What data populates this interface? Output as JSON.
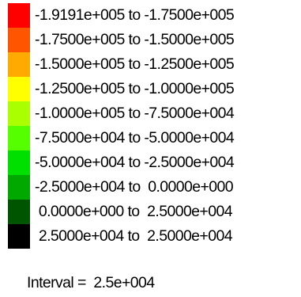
{
  "legend": {
    "items": [
      {
        "color": "#ff0000",
        "label": "-1.9191e+005 to -1.7500e+005"
      },
      {
        "color": "#ff5500",
        "label": "-1.7500e+005 to -1.5000e+005"
      },
      {
        "color": "#ffaa00",
        "label": "-1.5000e+005 to -1.2500e+005"
      },
      {
        "color": "#ffff00",
        "label": "-1.2500e+005 to -1.0000e+005"
      },
      {
        "color": "#aaff00",
        "label": "-1.0000e+005 to -7.5000e+004"
      },
      {
        "color": "#55ff00",
        "label": "-7.5000e+004 to -5.0000e+004"
      },
      {
        "color": "#00e000",
        "label": "-5.0000e+004 to -2.5000e+004"
      },
      {
        "color": "#00a800",
        "label": "-2.5000e+004 to  0.0000e+000"
      },
      {
        "color": "#005500",
        "label": " 0.0000e+000 to  2.5000e+004"
      },
      {
        "color": "#000000",
        "label": " 2.5000e+004 to  2.5000e+004"
      }
    ]
  },
  "interval": {
    "text": "Interval =  2.5e+004"
  }
}
